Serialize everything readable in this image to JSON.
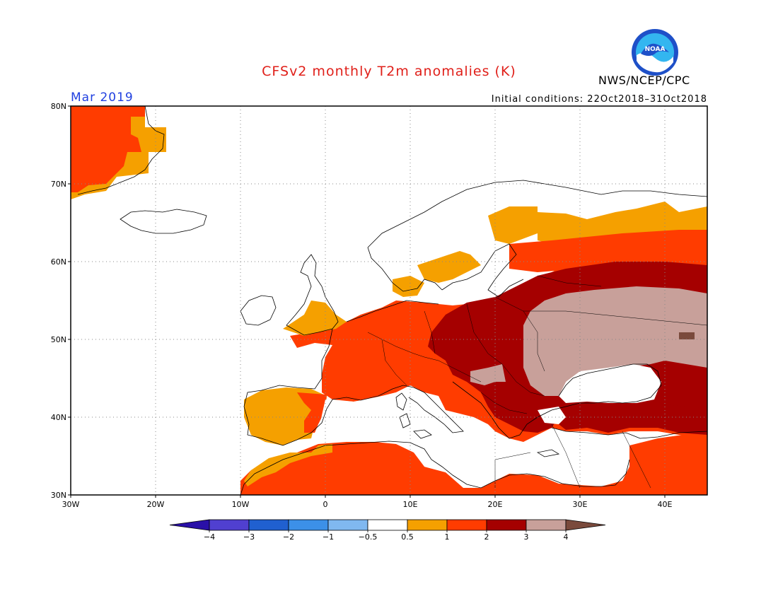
{
  "title": "CFSv2 monthly T2m anomalies (K)",
  "month": "Mar 2019",
  "initial_conditions": "Initial conditions: 22Oct2018–31Oct2018",
  "agency": "NWS/NCEP/CPC",
  "logo_text": "NOAA",
  "map": {
    "lon_range": [
      -30,
      45
    ],
    "lat_range": [
      30,
      80
    ],
    "lat_labels": [
      "80N",
      "70N",
      "60N",
      "50N",
      "40N",
      "30N"
    ],
    "lon_labels": [
      "30W",
      "20W",
      "10W",
      "0",
      "10E",
      "20E",
      "30E",
      "40E"
    ],
    "grid": "dotted"
  },
  "colorbar": {
    "labels": [
      "−4",
      "−3",
      "−2",
      "−1",
      "−0.5",
      "0.5",
      "1",
      "2",
      "3",
      "4"
    ],
    "colors": [
      "#2a10a8",
      "#5040d0",
      "#2060d0",
      "#3c90e8",
      "#80b8f0",
      "#ffffff",
      "#f5a000",
      "#ff3c00",
      "#a50000",
      "#c8a09a",
      "#7a4a3c"
    ]
  }
}
